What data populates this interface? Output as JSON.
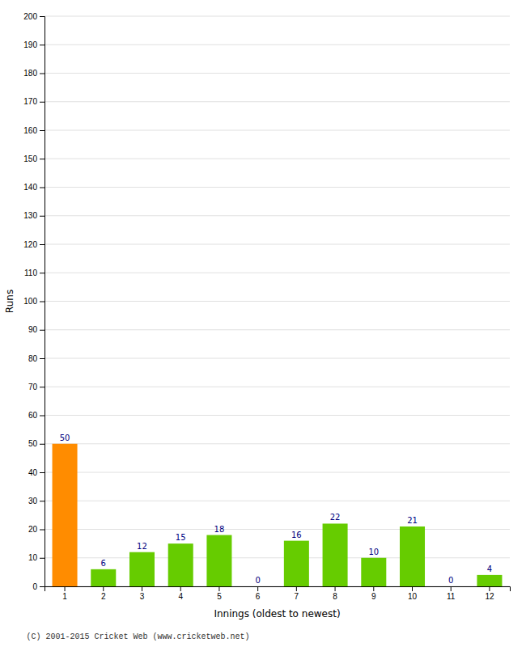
{
  "chart_data": {
    "type": "bar",
    "xlabel": "Innings (oldest to newest)",
    "ylabel": "Runs",
    "categories": [
      1,
      2,
      3,
      4,
      5,
      6,
      7,
      8,
      9,
      10,
      11,
      12
    ],
    "values": [
      50,
      6,
      12,
      15,
      18,
      0,
      16,
      22,
      10,
      21,
      0,
      4
    ],
    "colors": [
      "#ff8c00",
      "#66cc00",
      "#66cc00",
      "#66cc00",
      "#66cc00",
      "#66cc00",
      "#66cc00",
      "#66cc00",
      "#66cc00",
      "#66cc00",
      "#66cc00",
      "#66cc00"
    ],
    "ylim": [
      0,
      200
    ],
    "yticks": [
      0,
      10,
      20,
      30,
      40,
      50,
      60,
      70,
      80,
      90,
      100,
      110,
      120,
      130,
      140,
      150,
      160,
      170,
      180,
      190,
      200
    ],
    "grid": true,
    "data_labels": true,
    "annotations": [
      "(C) 2001-2015 Cricket Web (www.cricketweb.net)"
    ]
  }
}
